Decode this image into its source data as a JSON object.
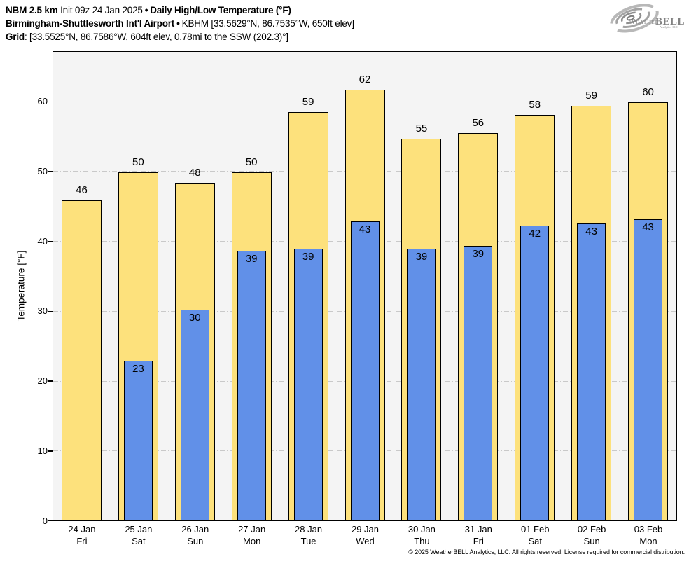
{
  "header": {
    "line1": {
      "model": "NBM 2.5 km",
      "init": "Init 09z 24 Jan 2025",
      "sep": "•",
      "title": "Daily High/Low Temperature (°F)"
    },
    "line2": {
      "station": "Birmingham-Shuttlesworth Int'l Airport",
      "sep": "•",
      "station_meta": "KBHM [33.5629°N, 86.7535°W, 650ft elev]"
    },
    "line3": {
      "label": "Grid",
      "value": ": [33.5525°N, 86.7586°W, 604ft elev, 0.78mi to the SSW (202.3)°]"
    }
  },
  "logo": {
    "brand_weather": "Weather",
    "brand_bell": "BELL",
    "brand_sub": "Analytics LLC"
  },
  "chart_data": {
    "type": "bar",
    "title": "Daily High/Low Temperature (°F)",
    "xlabel": "",
    "ylabel": "Temperature [°F]",
    "ylim": [
      0,
      67.1
    ],
    "yticks": [
      0,
      10,
      20,
      30,
      40,
      50,
      60
    ],
    "grid": "horizontal dash-dot lines at each ytick",
    "legend_position": "none",
    "plot_bg": "#f4f4f4",
    "grid_color": "#c9c9c9",
    "bar_border_color": "#000000",
    "categories": [
      {
        "date": "24 Jan",
        "day": "Fri"
      },
      {
        "date": "25 Jan",
        "day": "Sat"
      },
      {
        "date": "26 Jan",
        "day": "Sun"
      },
      {
        "date": "27 Jan",
        "day": "Mon"
      },
      {
        "date": "28 Jan",
        "day": "Tue"
      },
      {
        "date": "29 Jan",
        "day": "Wed"
      },
      {
        "date": "30 Jan",
        "day": "Thu"
      },
      {
        "date": "31 Jan",
        "day": "Fri"
      },
      {
        "date": "01 Feb",
        "day": "Sat"
      },
      {
        "date": "02 Feb",
        "day": "Sun"
      },
      {
        "date": "03 Feb",
        "day": "Mon"
      }
    ],
    "series": [
      {
        "name": "Daily High",
        "color": "#FDE17C",
        "label_values": [
          46,
          50,
          48,
          50,
          59,
          62,
          55,
          56,
          58,
          59,
          60
        ],
        "bar_values": [
          45.8,
          49.9,
          48.3,
          49.9,
          58.5,
          61.7,
          54.7,
          55.5,
          58.1,
          59.4,
          59.9
        ]
      },
      {
        "name": "Daily Low",
        "color": "#6190E8",
        "label_values": [
          null,
          23,
          30,
          39,
          39,
          43,
          39,
          39,
          42,
          43,
          43
        ],
        "bar_values": [
          null,
          22.9,
          30.2,
          38.6,
          38.9,
          42.8,
          38.9,
          39.3,
          42.2,
          42.5,
          43.1
        ]
      }
    ]
  },
  "footer": {
    "copyright": "© 2025 WeatherBELL Analytics, LLC. All rights reserved. License required for commercial distribution."
  }
}
